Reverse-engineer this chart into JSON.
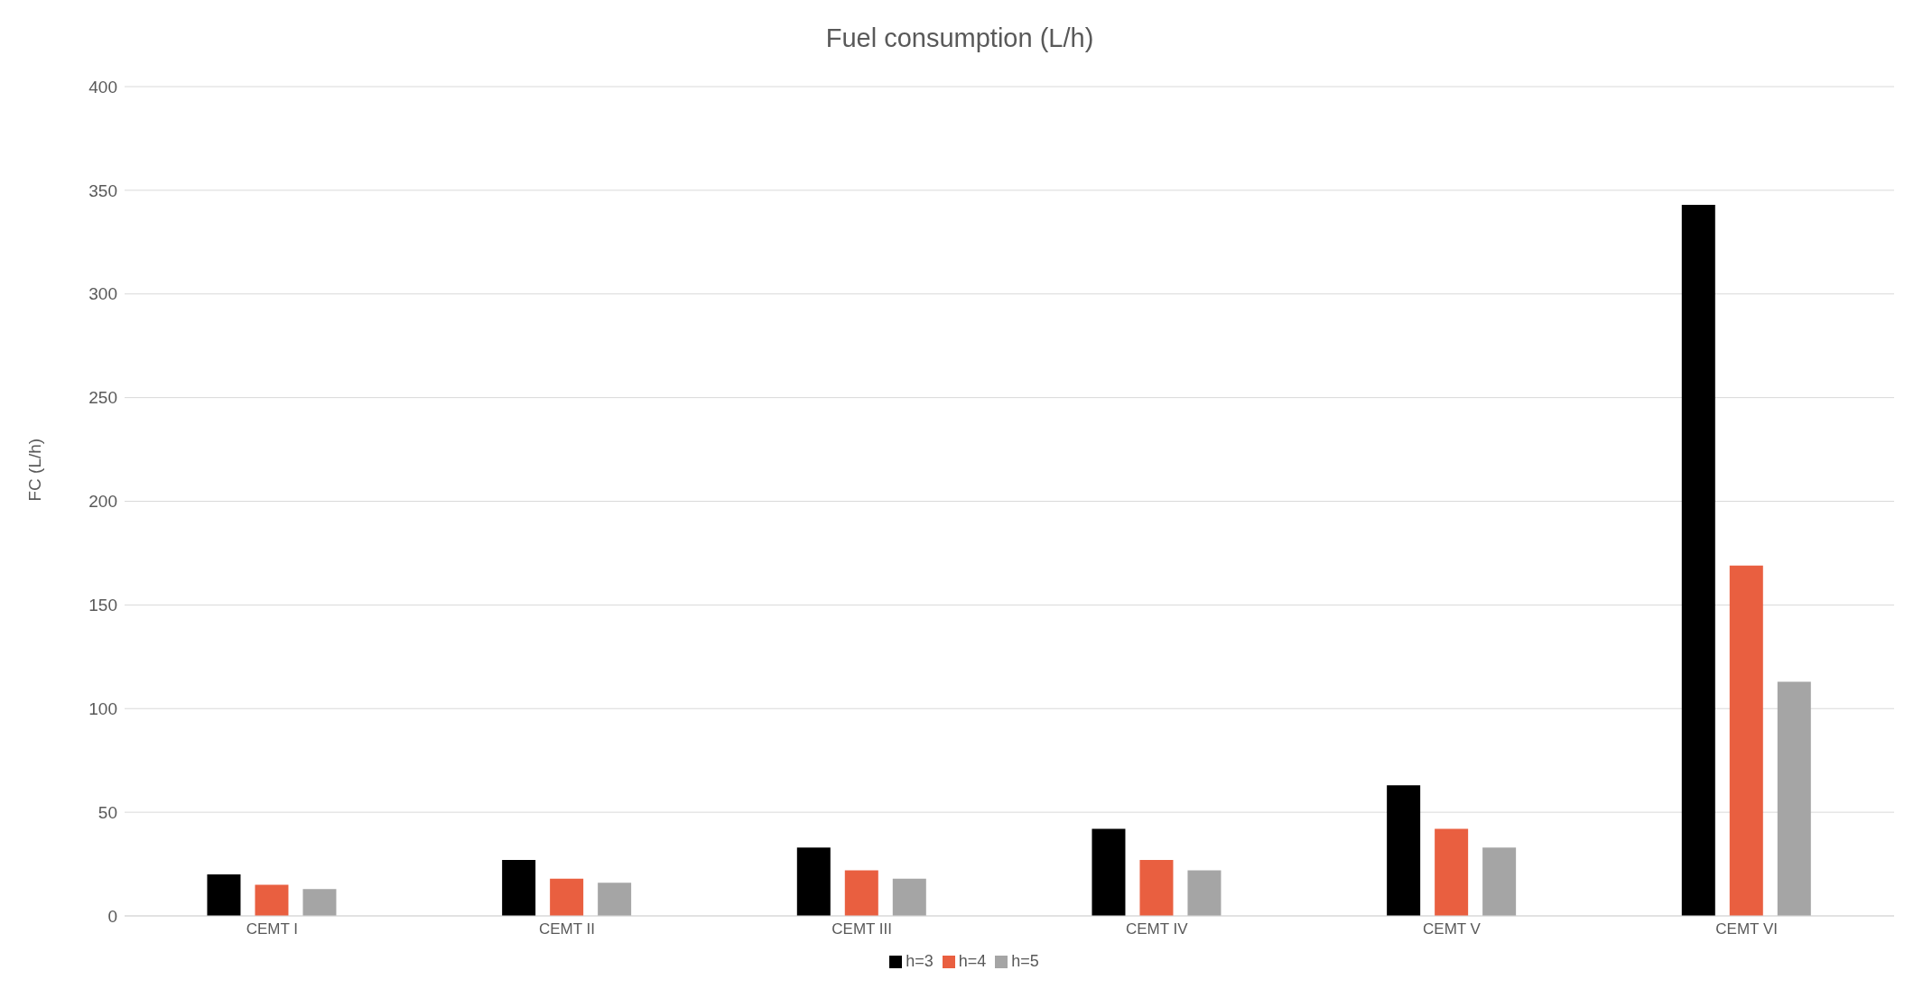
{
  "chart_data": {
    "type": "bar",
    "title": "Fuel consumption (L/h)",
    "ylabel": "FC (L/h)",
    "categories": [
      "CEMT I",
      "CEMT II",
      "CEMT III",
      "CEMT IV",
      "CEMT V",
      "CEMT VI"
    ],
    "series": [
      {
        "name": "h=3",
        "color": "#000000",
        "values": [
          20,
          27,
          33,
          42,
          63,
          343
        ]
      },
      {
        "name": "h=4",
        "color": "#e95f40",
        "values": [
          15,
          18,
          22,
          27,
          42,
          169
        ]
      },
      {
        "name": "h=5",
        "color": "#a5a5a5",
        "values": [
          13,
          16,
          18,
          22,
          33,
          113
        ]
      }
    ],
    "ylim": [
      0,
      400
    ],
    "yticks": [
      0,
      50,
      100,
      150,
      200,
      250,
      300,
      350,
      400
    ],
    "grid": "y",
    "legend": "bottom"
  }
}
